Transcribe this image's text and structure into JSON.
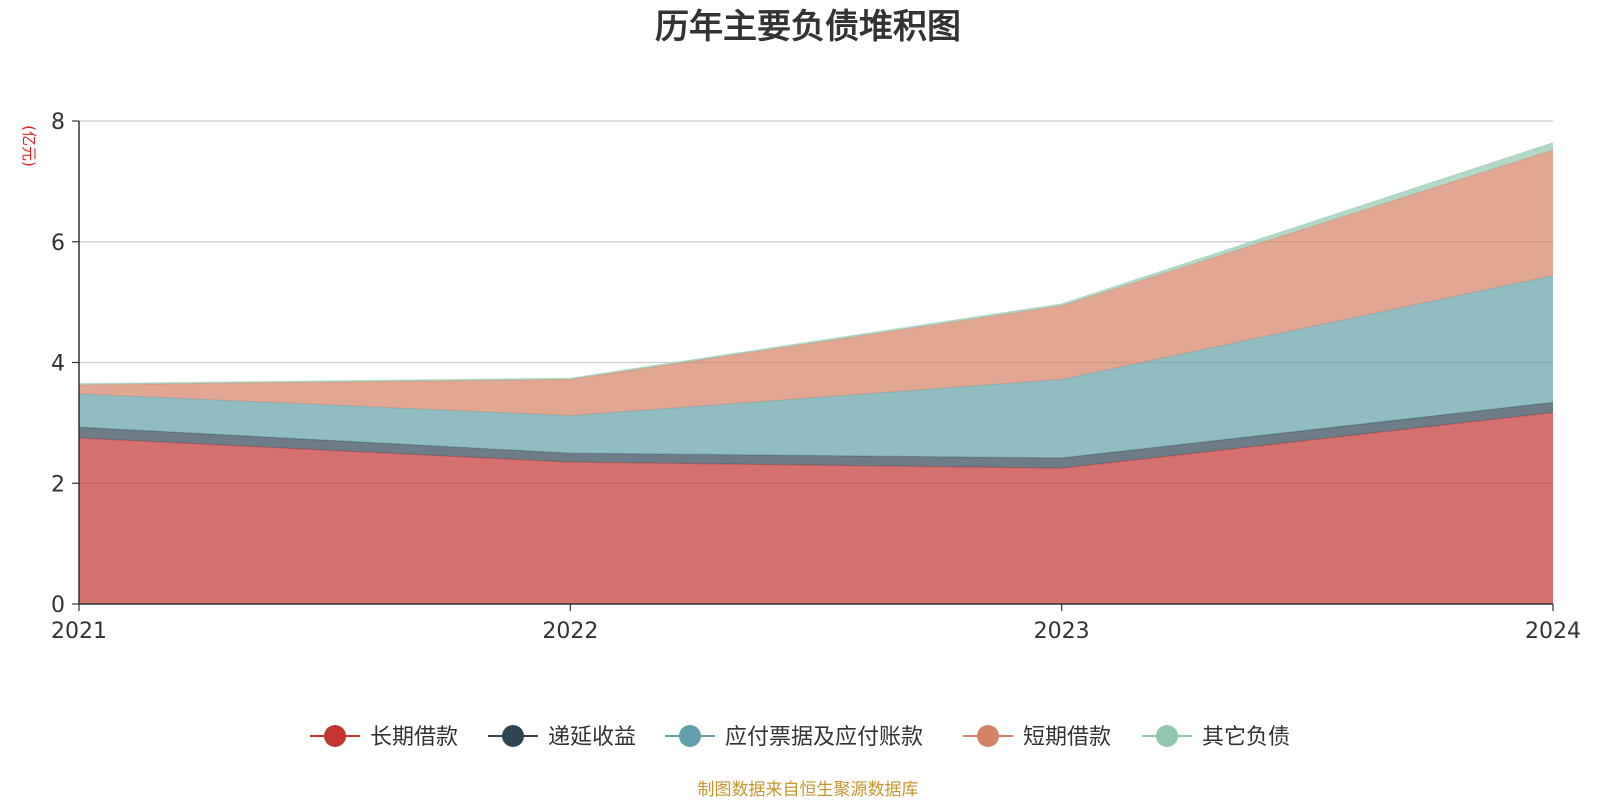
{
  "chart_data": {
    "type": "area",
    "stacked": true,
    "title": "历年主要负债堆积图",
    "unit_label": "(亿元)",
    "x": [
      "2021",
      "2022",
      "2023",
      "2024"
    ],
    "ylim": [
      0,
      8
    ],
    "yticks": [
      "0",
      "2",
      "4",
      "6",
      "8"
    ],
    "grid": true,
    "legend_position": "bottom",
    "series": [
      {
        "name": "长期借款",
        "color": "#c23531",
        "values": [
          2.75,
          2.35,
          2.25,
          3.17
        ]
      },
      {
        "name": "递延收益",
        "color": "#2f4554",
        "values": [
          0.18,
          0.15,
          0.17,
          0.17
        ]
      },
      {
        "name": "应付票据及应付账款",
        "color": "#61a0a8",
        "values": [
          0.55,
          0.62,
          1.3,
          2.1
        ]
      },
      {
        "name": "短期借款",
        "color": "#d48265",
        "values": [
          0.15,
          0.6,
          1.22,
          2.08
        ]
      },
      {
        "name": "其它负债",
        "color": "#91c7ae",
        "values": [
          0.02,
          0.02,
          0.03,
          0.12
        ]
      }
    ]
  },
  "footer": {
    "source_text": "制图数据来自恒生聚源数据库"
  }
}
